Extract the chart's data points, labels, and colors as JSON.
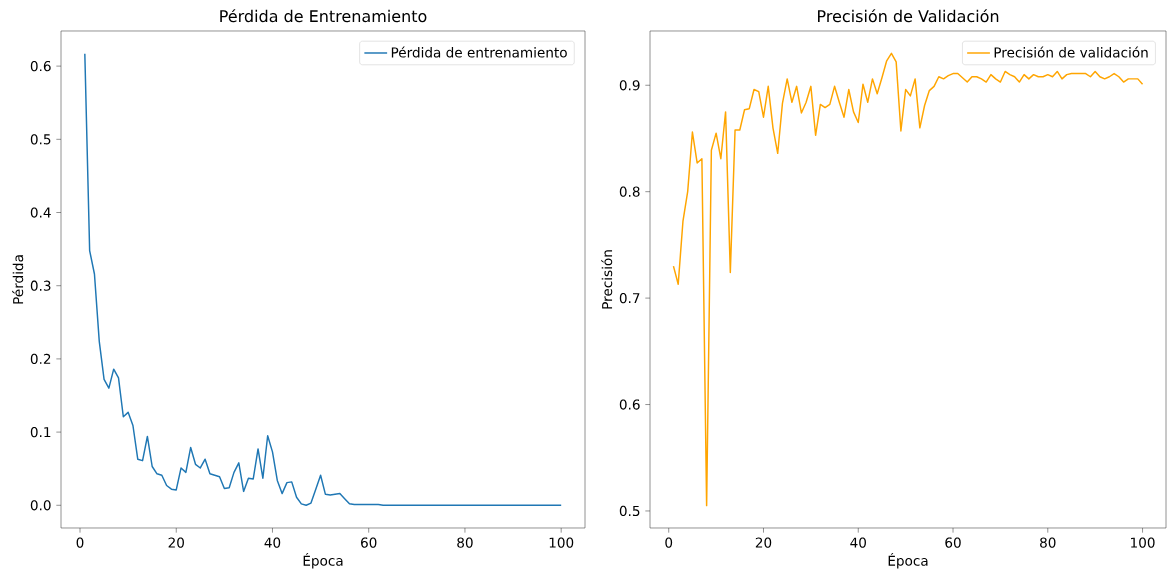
{
  "chart_data": [
    {
      "type": "line",
      "title": "Pérdida de Entrenamiento",
      "xlabel": "Época",
      "ylabel": "Pérdida",
      "x": [
        1,
        2,
        3,
        4,
        5,
        6,
        7,
        8,
        9,
        10,
        11,
        12,
        13,
        14,
        15,
        16,
        17,
        18,
        19,
        20,
        21,
        22,
        23,
        24,
        25,
        26,
        27,
        28,
        29,
        30,
        31,
        32,
        33,
        34,
        35,
        36,
        37,
        38,
        39,
        40,
        41,
        42,
        43,
        44,
        45,
        46,
        47,
        48,
        49,
        50,
        51,
        52,
        53,
        54,
        55,
        56,
        57,
        58,
        59,
        60,
        61,
        62,
        63,
        64,
        65,
        66,
        67,
        68,
        69,
        70,
        71,
        72,
        73,
        74,
        75,
        76,
        77,
        78,
        79,
        80,
        81,
        82,
        83,
        84,
        85,
        86,
        87,
        88,
        89,
        90,
        91,
        92,
        93,
        94,
        95,
        96,
        97,
        98,
        99,
        100
      ],
      "series": [
        {
          "name": "Pérdida de entrenamiento",
          "color": "#1f77b4",
          "values": [
            0.617,
            0.348,
            0.316,
            0.224,
            0.172,
            0.16,
            0.186,
            0.174,
            0.121,
            0.127,
            0.109,
            0.063,
            0.061,
            0.094,
            0.053,
            0.043,
            0.041,
            0.027,
            0.022,
            0.021,
            0.051,
            0.045,
            0.079,
            0.056,
            0.051,
            0.063,
            0.043,
            0.041,
            0.039,
            0.023,
            0.024,
            0.045,
            0.058,
            0.019,
            0.037,
            0.036,
            0.077,
            0.037,
            0.095,
            0.073,
            0.034,
            0.016,
            0.031,
            0.032,
            0.011,
            0.002,
            0.0,
            0.003,
            0.022,
            0.041,
            0.015,
            0.014,
            0.015,
            0.016,
            0.009,
            0.002,
            0.001,
            0.001,
            0.001,
            0.001,
            0.001,
            0.001,
            0.0,
            0.0,
            0.0,
            0.0,
            0.0,
            0.0,
            0.0,
            0.0,
            0.0,
            0.0,
            0.0,
            0.0,
            0.0,
            0.0,
            0.0,
            0.0,
            0.0,
            0.0,
            0.0,
            0.0,
            0.0,
            0.0,
            0.0,
            0.0,
            0.0,
            0.0,
            0.0,
            0.0,
            0.0,
            0.0,
            0.0,
            0.0,
            0.0,
            0.0,
            0.0,
            0.0,
            0.0,
            0.0
          ]
        }
      ],
      "xlim": [
        -3.95,
        104.95
      ],
      "ylim": [
        -0.031,
        0.648
      ],
      "xticks": [
        0,
        20,
        40,
        60,
        80,
        100
      ],
      "yticks": [
        {
          "value": 0,
          "label": "0.0"
        },
        0.1,
        0.2,
        0.3,
        0.4,
        0.5,
        0.6
      ],
      "legend": "top right"
    },
    {
      "type": "line",
      "title": "Precisión de Validación",
      "xlabel": "Época",
      "ylabel": "Precisión",
      "x": [
        1,
        2,
        3,
        4,
        5,
        6,
        7,
        8,
        9,
        10,
        11,
        12,
        13,
        14,
        15,
        16,
        17,
        18,
        19,
        20,
        21,
        22,
        23,
        24,
        25,
        26,
        27,
        28,
        29,
        30,
        31,
        32,
        33,
        34,
        35,
        36,
        37,
        38,
        39,
        40,
        41,
        42,
        43,
        44,
        45,
        46,
        47,
        48,
        49,
        50,
        51,
        52,
        53,
        54,
        55,
        56,
        57,
        58,
        59,
        60,
        61,
        62,
        63,
        64,
        65,
        66,
        67,
        68,
        69,
        70,
        71,
        72,
        73,
        74,
        75,
        76,
        77,
        78,
        79,
        80,
        81,
        82,
        83,
        84,
        85,
        86,
        87,
        88,
        89,
        90,
        91,
        92,
        93,
        94,
        95,
        96,
        97,
        98,
        99,
        100
      ],
      "series": [
        {
          "name": "Precisión de validación",
          "color": "#ffa500",
          "values": [
            0.73,
            0.713,
            0.772,
            0.8,
            0.856,
            0.827,
            0.831,
            0.505,
            0.839,
            0.855,
            0.831,
            0.875,
            0.724,
            0.858,
            0.858,
            0.877,
            0.878,
            0.896,
            0.894,
            0.87,
            0.899,
            0.86,
            0.836,
            0.883,
            0.906,
            0.884,
            0.899,
            0.874,
            0.884,
            0.899,
            0.853,
            0.882,
            0.879,
            0.882,
            0.899,
            0.884,
            0.87,
            0.896,
            0.875,
            0.865,
            0.901,
            0.884,
            0.906,
            0.892,
            0.907,
            0.923,
            0.93,
            0.922,
            0.857,
            0.896,
            0.89,
            0.906,
            0.86,
            0.881,
            0.895,
            0.899,
            0.908,
            0.906,
            0.909,
            0.911,
            0.911,
            0.907,
            0.903,
            0.908,
            0.908,
            0.906,
            0.903,
            0.91,
            0.906,
            0.903,
            0.913,
            0.91,
            0.908,
            0.903,
            0.91,
            0.906,
            0.91,
            0.908,
            0.908,
            0.91,
            0.908,
            0.913,
            0.906,
            0.91,
            0.911,
            0.911,
            0.911,
            0.911,
            0.908,
            0.913,
            0.908,
            0.906,
            0.908,
            0.911,
            0.908,
            0.903,
            0.906,
            0.906,
            0.906,
            0.901
          ]
        }
      ],
      "xlim": [
        -3.95,
        104.95
      ],
      "ylim": [
        0.484,
        0.951
      ],
      "xticks": [
        0,
        20,
        40,
        60,
        80,
        100
      ],
      "yticks": [
        0.5,
        0.6,
        0.7,
        0.8,
        0.9
      ],
      "legend": "top right"
    }
  ]
}
